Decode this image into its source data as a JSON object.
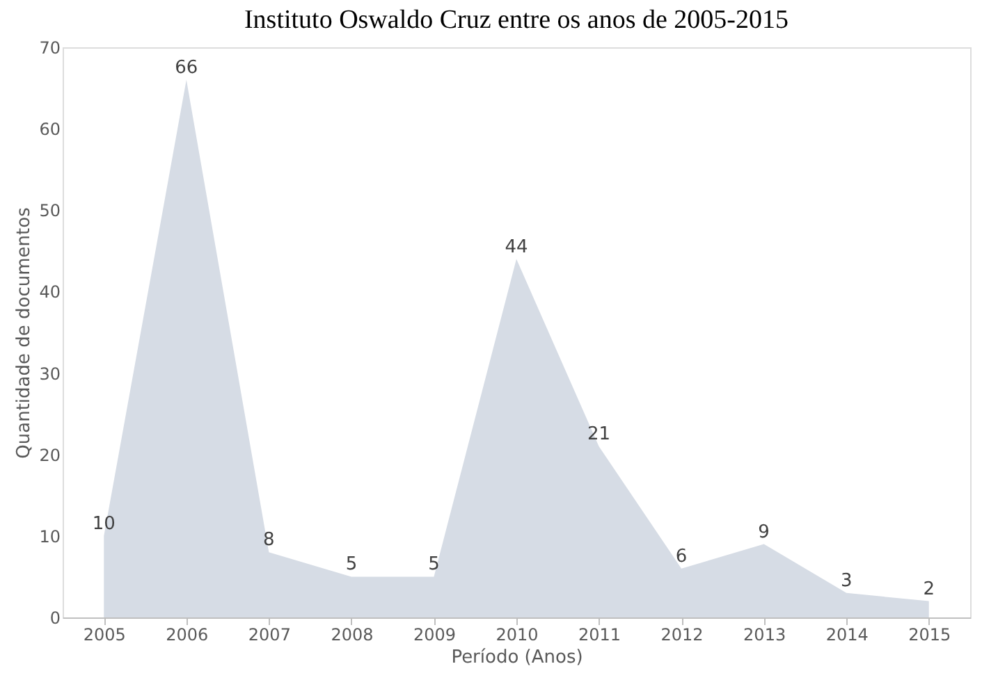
{
  "chart_data": {
    "type": "area",
    "title": "Instituto Oswaldo Cruz entre os anos de 2005-2015",
    "xlabel": "Período (Anos)",
    "ylabel": "Quantidade de documentos",
    "categories": [
      "2005",
      "2006",
      "2007",
      "2008",
      "2009",
      "2010",
      "2011",
      "2012",
      "2013",
      "2014",
      "2015"
    ],
    "series": [
      {
        "color": "#d6dce5",
        "values": [
          10,
          66,
          8,
          5,
          5,
          44,
          21,
          6,
          9,
          3,
          2
        ]
      }
    ],
    "ylim": [
      0,
      70
    ],
    "yticks": [
      0,
      10,
      20,
      30,
      40,
      50,
      60,
      70
    ],
    "grid": false,
    "data_labels": true
  }
}
